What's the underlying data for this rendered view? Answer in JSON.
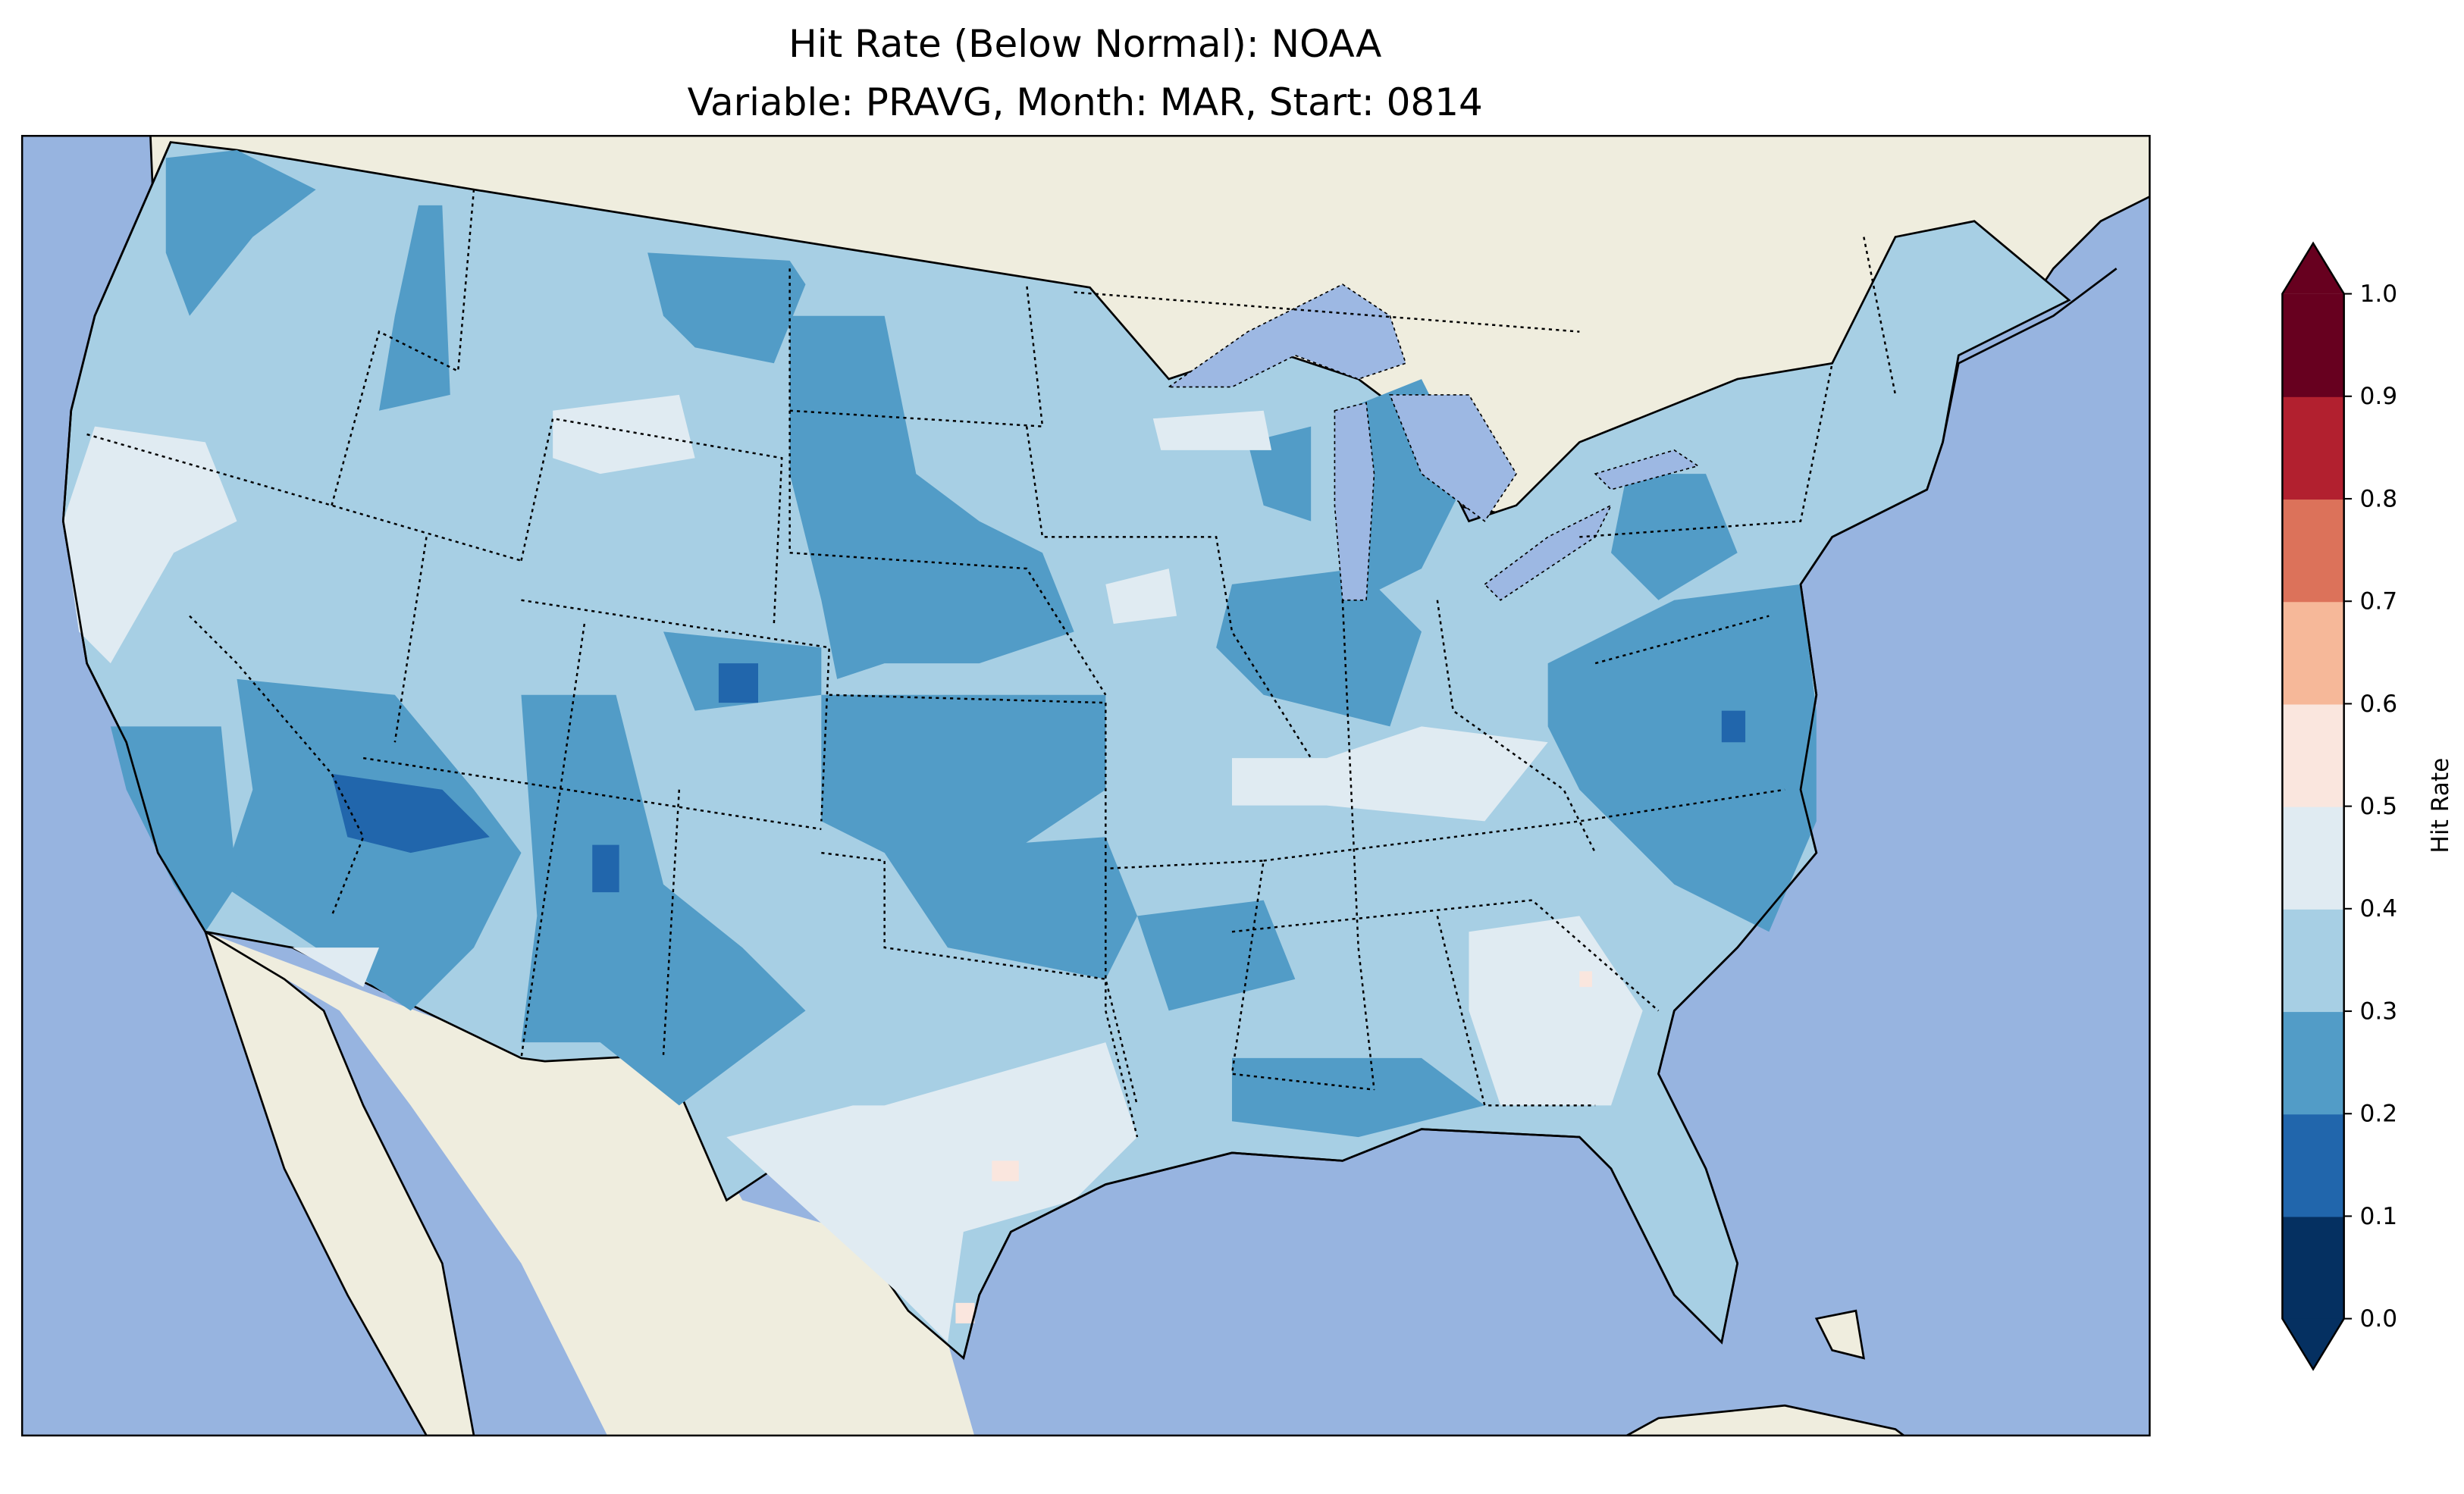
{
  "title": {
    "line1": "Hit Rate (Below Normal): NOAA",
    "line2": "Variable: PRAVG, Month: MAR, Start: 0814"
  },
  "map": {
    "ocean_color": "#97b4e0",
    "land_color": "#efedde",
    "lake_color": "#9db8e3"
  },
  "colorbar": {
    "label": "Hit Rate",
    "levels": [
      0.0,
      0.1,
      0.2,
      0.3,
      0.4,
      0.5,
      0.6,
      0.7,
      0.8,
      0.9,
      1.0
    ],
    "tick_labels": [
      "0.0",
      "0.1",
      "0.2",
      "0.3",
      "0.4",
      "0.5",
      "0.6",
      "0.7",
      "0.8",
      "0.9",
      "1.0"
    ],
    "colors": [
      "#053061",
      "#2166ac",
      "#529cc7",
      "#a7cfe4",
      "#e0ebf2",
      "#fae6de",
      "#f6b899",
      "#dc725a",
      "#b2202f",
      "#67001f"
    ],
    "extend": "both"
  }
}
